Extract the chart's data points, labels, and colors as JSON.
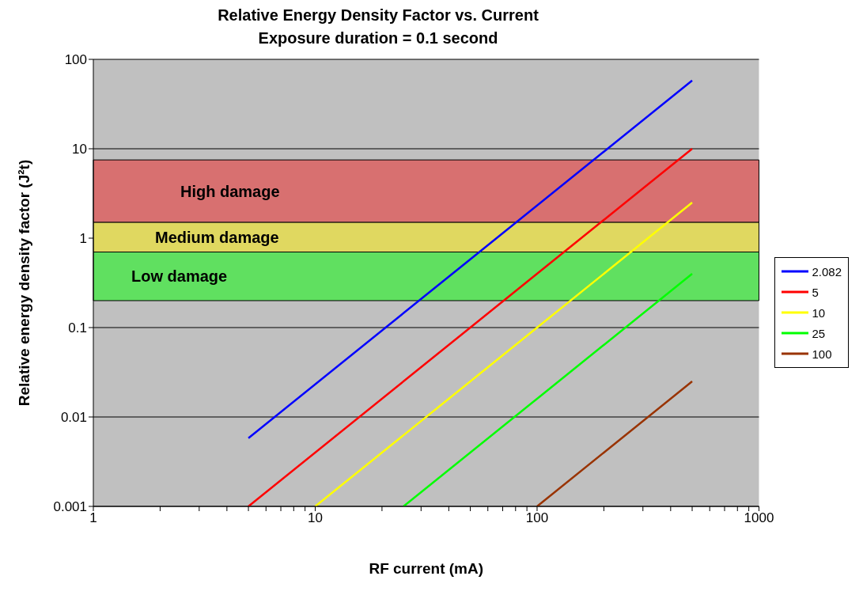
{
  "chart_data": {
    "type": "line",
    "title": "Relative Energy Density Factor vs. Current",
    "subtitle": "Exposure duration = 0.1 second",
    "xlabel": "RF current (mA)",
    "ylabel": "Relative energy density factor (J²t)",
    "log": "xy",
    "xlim": [
      1,
      1000
    ],
    "ylim": [
      0.001,
      100
    ],
    "xticks": [
      1,
      {
        "value": 2,
        "label": null
      },
      {
        "value": 3,
        "label": null
      },
      {
        "value": 4,
        "label": null
      },
      {
        "value": 5,
        "label": null
      },
      {
        "value": 6,
        "label": null
      },
      {
        "value": 7,
        "label": null
      },
      {
        "value": 8,
        "label": null
      },
      {
        "value": 9,
        "label": null
      },
      10,
      {
        "value": 20,
        "label": null
      },
      {
        "value": 30,
        "label": null
      },
      {
        "value": 40,
        "label": null
      },
      {
        "value": 50,
        "label": null
      },
      {
        "value": 60,
        "label": null
      },
      {
        "value": 70,
        "label": null
      },
      {
        "value": 80,
        "label": null
      },
      {
        "value": 90,
        "label": null
      },
      100,
      {
        "value": 200,
        "label": null
      },
      {
        "value": 300,
        "label": null
      },
      {
        "value": 400,
        "label": null
      },
      {
        "value": 500,
        "label": null
      },
      {
        "value": 600,
        "label": null
      },
      {
        "value": 700,
        "label": null
      },
      {
        "value": 800,
        "label": null
      },
      {
        "value": 900,
        "label": null
      },
      1000
    ],
    "yticks": [
      0.001,
      0.01,
      0.1,
      1,
      10,
      100
    ],
    "grid": "y",
    "legend": "right",
    "marker": "none",
    "line_style": "solid",
    "bands": [
      {
        "axis": "y",
        "from": 1.5,
        "to": 7.5,
        "label": "High damage",
        "color": "#d87070"
      },
      {
        "axis": "y",
        "from": 0.7,
        "to": 1.5,
        "label": "Medium damage",
        "color": "#e0d860"
      },
      {
        "axis": "y",
        "from": 0.2,
        "to": 0.7,
        "label": "Low damage",
        "color": "#60e060"
      }
    ],
    "series": [
      {
        "name": "2.082",
        "color": "#0000ff",
        "x": [
          5,
          50,
          500
        ],
        "values": [
          0.0058,
          0.58,
          58
        ]
      },
      {
        "name": "5",
        "color": "#ff0000",
        "x": [
          5,
          50,
          500
        ],
        "values": [
          0.001,
          0.1,
          10
        ]
      },
      {
        "name": "10",
        "color": "#ffff00",
        "x": [
          10,
          100,
          500
        ],
        "values": [
          0.001,
          0.1,
          2.5
        ]
      },
      {
        "name": "25",
        "color": "#00ff00",
        "x": [
          25,
          100,
          500
        ],
        "values": [
          0.001,
          0.016,
          0.4
        ]
      },
      {
        "name": "100",
        "color": "#993300",
        "x": [
          100,
          200,
          500
        ],
        "values": [
          0.001,
          0.004,
          0.025
        ]
      }
    ]
  }
}
